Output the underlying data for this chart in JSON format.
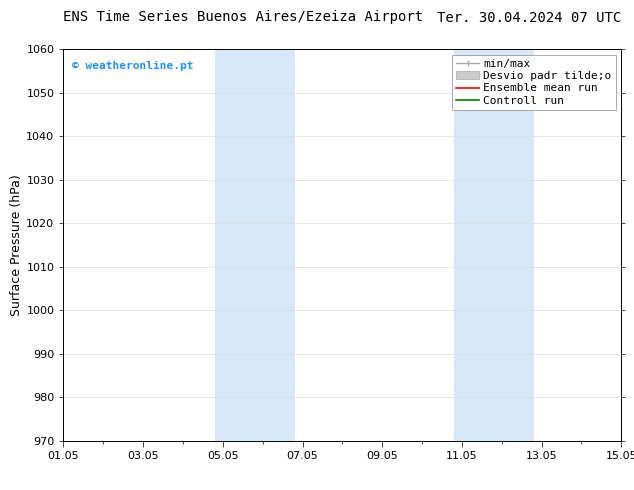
{
  "title_left": "ENS Time Series Buenos Aires/Ezeiza Airport",
  "title_right": "Ter. 30.04.2024 07 UTC",
  "ylabel": "Surface Pressure (hPa)",
  "watermark": "© weatheronline.pt",
  "watermark_color": "#1E90FF",
  "ylim": [
    970,
    1060
  ],
  "yticks": [
    970,
    980,
    990,
    1000,
    1010,
    1020,
    1030,
    1040,
    1050,
    1060
  ],
  "xtick_labels": [
    "01.05",
    "03.05",
    "05.05",
    "07.05",
    "09.05",
    "11.05",
    "13.05",
    "15.05"
  ],
  "xtick_positions": [
    0,
    2,
    4,
    6,
    8,
    10,
    12,
    14
  ],
  "xlim": [
    0,
    14
  ],
  "shaded_regions": [
    {
      "xstart": 3.8,
      "xend": 5.8,
      "color": "#D6E8F8"
    },
    {
      "xstart": 9.8,
      "xend": 11.8,
      "color": "#D6E8F8"
    }
  ],
  "legend_labels": [
    "min/max",
    "Desvio padr tilde;o",
    "Ensemble mean run",
    "Controll run"
  ],
  "legend_colors": [
    "#AAAAAA",
    "#CCCCCC",
    "#FF0000",
    "#008000"
  ],
  "bg_color": "#FFFFFF",
  "plot_bg_color": "#FFFFFF",
  "grid_color": "#DDDDDD",
  "title_fontsize": 10,
  "tick_fontsize": 8,
  "ylabel_fontsize": 9,
  "legend_fontsize": 8
}
